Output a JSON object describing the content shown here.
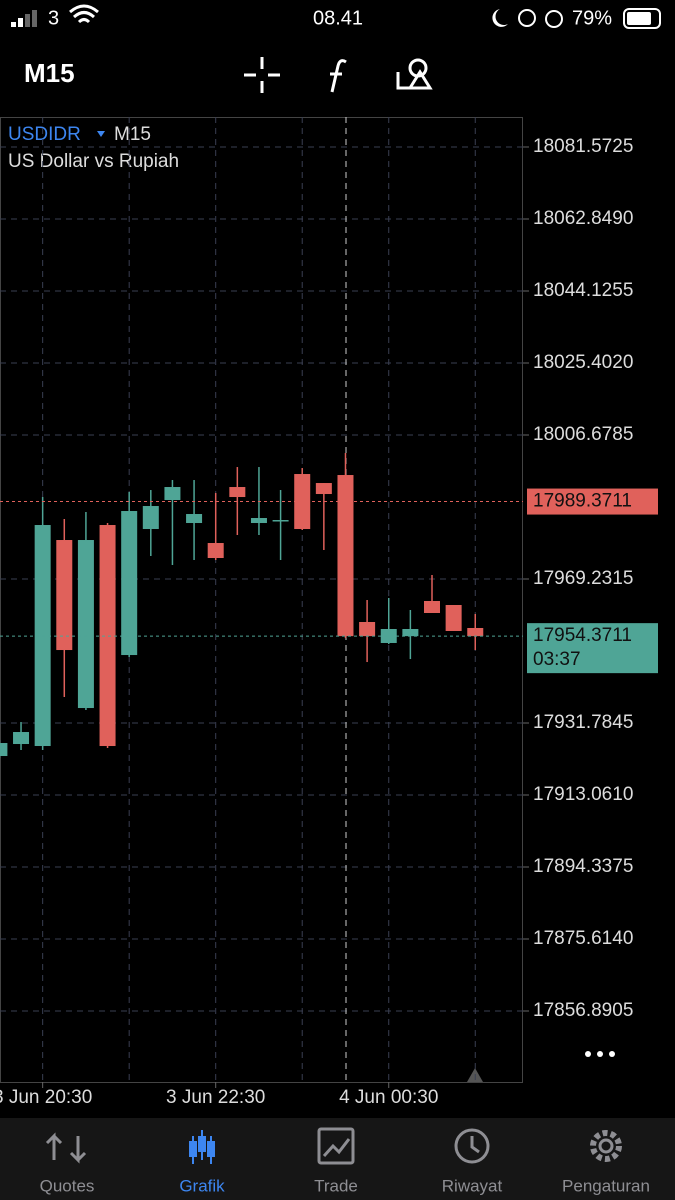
{
  "status_bar": {
    "carrier": "3",
    "time": "08.41",
    "battery": "79%"
  },
  "toolbar": {
    "timeframe": "M15"
  },
  "chart_data": {
    "type": "candlestick",
    "symbol": "USDIDR",
    "timeframe": "M15",
    "subtitle": "US Dollar vs Rupiah",
    "categories": [
      null,
      null,
      "3 Jun 20:30",
      null,
      null,
      null,
      null,
      null,
      null,
      null,
      "3 Jun 22:30",
      null,
      null,
      null,
      null,
      null,
      null,
      null,
      "4 Jun 00:30",
      null,
      null,
      null,
      null
    ],
    "open": [
      17923.2,
      17926.32,
      17925.8,
      17979.37,
      17935.68,
      17983.27,
      17949.46,
      17982.23,
      17989.77,
      17983.79,
      17978.59,
      17993.15,
      17983.79,
      17984.31,
      17996.53,
      17994.19,
      17996.27,
      17958.05,
      17952.59,
      17954.37,
      17963.51,
      17962.47,
      17956.49
    ],
    "high": [
      17927.36,
      17932.04,
      17990.55,
      17984.83,
      17986.65,
      17983.79,
      17991.85,
      17992.37,
      17994.97,
      17994.97,
      17991.59,
      17998.35,
      17998.35,
      17992.37,
      17998.09,
      17994.19,
      18001.99,
      17963.77,
      17964.29,
      17961.17,
      17970.27,
      17962.47,
      17960.13
    ],
    "low": [
      17922.68,
      17924.76,
      17924.76,
      17938.54,
      17935.16,
      17925.28,
      17948.94,
      17975.21,
      17972.87,
      17974.17,
      17974.17,
      17980.67,
      17980.67,
      17974.17,
      17981.97,
      17976.77,
      17953.85,
      17947.64,
      17952.33,
      17948.42,
      17960.39,
      17955.71,
      17950.76
    ],
    "close": [
      17926.58,
      17929.44,
      17983.27,
      17950.76,
      17979.37,
      17925.8,
      17986.91,
      17988.21,
      17993.15,
      17986.13,
      17974.69,
      17990.55,
      17985.09,
      17984.57,
      17982.23,
      17991.33,
      17954.37,
      17954.37,
      17956.23,
      17956.23,
      17960.39,
      17955.71,
      17954.37
    ],
    "up_color": "#4fa596",
    "down_color": "#e0615b",
    "ylim": [
      17838.43,
      18089.37
    ],
    "yticks": [
      18081.5725,
      {
        "value": 18062.849,
        "label": "18062.8490"
      },
      18044.1255,
      {
        "value": 18025.402,
        "label": "18025.4020"
      },
      18006.6785,
      17969.2315,
      17931.7845,
      {
        "value": 17913.061,
        "label": "17913.0610"
      },
      17894.3375,
      {
        "value": 17875.614,
        "label": "17875.6140"
      },
      17856.8905
    ],
    "price_lines": [
      {
        "value": 17989.3711,
        "color": "#e0615b"
      },
      {
        "value": 17954.3711,
        "color": "#4fa596",
        "countdown": "03:37"
      }
    ],
    "grid": true
  },
  "tabs": [
    "Quotes",
    "Grafik",
    "Trade",
    "Riwayat",
    "Pengaturan"
  ],
  "active_tab": 1
}
